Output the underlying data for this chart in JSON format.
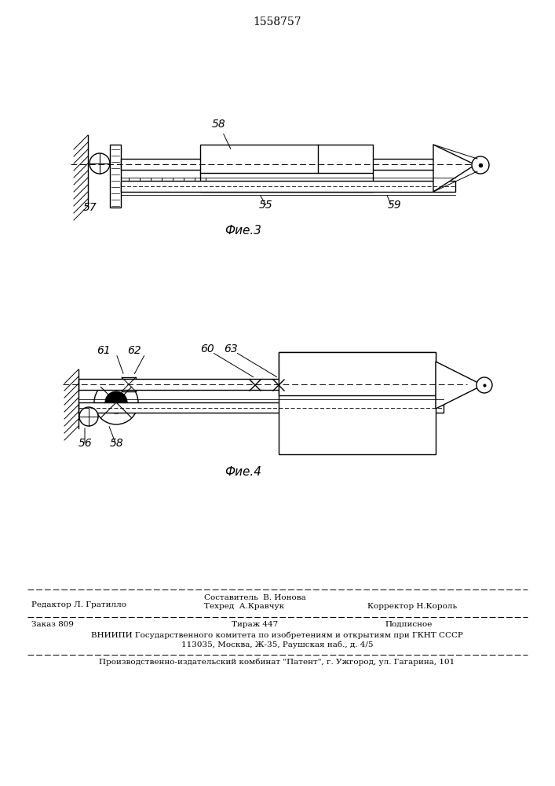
{
  "title": "1558757",
  "fig3_label": "Фие.3",
  "fig4_label": "Фие.4",
  "bg_color": "#ffffff",
  "line_color": "#000000",
  "footer_vniipi": "ВНИИПИ Государственного комитета по изобретениям и открытиям при ГКНТ СССР",
  "footer_address": "113035, Москва, Ж-35, Раушская наб., д. 4/5",
  "footer_patent": "Производственно-издательский комбинат \"Патент\", г. Ужгород, ул. Гагарина, 101"
}
